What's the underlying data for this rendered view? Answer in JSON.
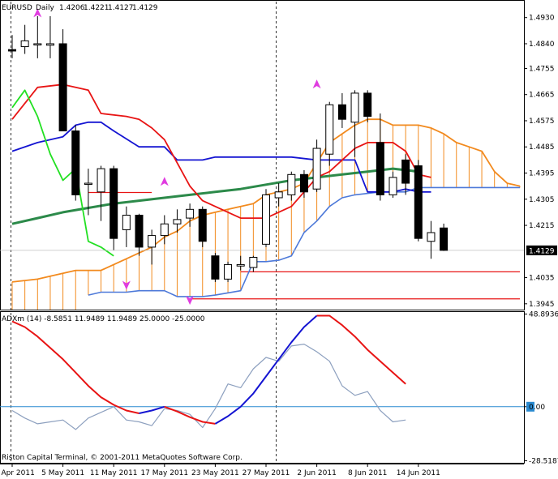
{
  "window": {
    "symbol": "EURUSD",
    "timeframe": "Daily",
    "ohlc": [
      "1.4206",
      "1.4221",
      "1.4127",
      "1.4129"
    ],
    "copyright": "Riston Capital Terminal, © 2001-2011 MetaQuotes Software Corp."
  },
  "colors": {
    "bull_candle": "#ffffff",
    "bear_candle": "#000000",
    "tenkan": "#e81414",
    "kijun": "#1414d2",
    "chikou": "#22e022",
    "cloud": "#f28a1e",
    "senkou_b": "#4d79d9",
    "ma": "#2c8a4a",
    "level_line": "#e81414",
    "arrow": "#e03ce0",
    "adx_up": "#1414d2",
    "adx_down": "#e81414",
    "di_line": "#8da0bf",
    "zero_line": "#2a8ad0",
    "grid": "#000000"
  },
  "chart_data": [
    {
      "type": "candlestick",
      "name": "price",
      "current_price": "1.4129",
      "y_ticks": [
        "1.4930",
        "1.4840",
        "1.4755",
        "1.4665",
        "1.4575",
        "1.4485",
        "1.4395",
        "1.4305",
        "1.4215",
        "1.4035",
        "1.3945"
      ],
      "y_tick_values": [
        1.493,
        1.484,
        1.4755,
        1.4665,
        1.4575,
        1.4485,
        1.4395,
        1.4305,
        1.4215,
        1.4035,
        1.3945
      ],
      "ylim": [
        1.3925,
        1.4985
      ],
      "x_labels": [
        "29 Apr 2011",
        "5 May 2011",
        "11 May 2011",
        "17 May 2011",
        "23 May 2011",
        "27 May 2011",
        "2 Jun 2011",
        "8 Jun 2011",
        "14 Jun 2011"
      ],
      "x_label_index": [
        0,
        4,
        8,
        12,
        16,
        20,
        24,
        28,
        32
      ],
      "candles": [
        {
          "o": 1.482,
          "h": 1.487,
          "l": 1.479,
          "c": 1.4815
        },
        {
          "o": 1.483,
          "h": 1.4905,
          "l": 1.4805,
          "c": 1.485
        },
        {
          "o": 1.484,
          "h": 1.4935,
          "l": 1.479,
          "c": 1.484
        },
        {
          "o": 1.4835,
          "h": 1.4935,
          "l": 1.479,
          "c": 1.484
        },
        {
          "o": 1.484,
          "h": 1.489,
          "l": 1.454,
          "c": 1.454
        },
        {
          "o": 1.454,
          "h": 1.456,
          "l": 1.43,
          "c": 1.432
        },
        {
          "o": 1.436,
          "h": 1.441,
          "l": 1.425,
          "c": 1.436
        },
        {
          "o": 1.433,
          "h": 1.442,
          "l": 1.423,
          "c": 1.441
        },
        {
          "o": 1.441,
          "h": 1.442,
          "l": 1.413,
          "c": 1.417
        },
        {
          "o": 1.42,
          "h": 1.428,
          "l": 1.414,
          "c": 1.425
        },
        {
          "o": 1.425,
          "h": 1.4255,
          "l": 1.411,
          "c": 1.414
        },
        {
          "o": 1.414,
          "h": 1.42,
          "l": 1.408,
          "c": 1.418
        },
        {
          "o": 1.418,
          "h": 1.425,
          "l": 1.415,
          "c": 1.422
        },
        {
          "o": 1.422,
          "h": 1.427,
          "l": 1.419,
          "c": 1.4235
        },
        {
          "o": 1.424,
          "h": 1.429,
          "l": 1.421,
          "c": 1.427
        },
        {
          "o": 1.427,
          "h": 1.428,
          "l": 1.414,
          "c": 1.416
        },
        {
          "o": 1.411,
          "h": 1.412,
          "l": 1.402,
          "c": 1.403
        },
        {
          "o": 1.403,
          "h": 1.409,
          "l": 1.402,
          "c": 1.408
        },
        {
          "o": 1.4075,
          "h": 1.411,
          "l": 1.406,
          "c": 1.408
        },
        {
          "o": 1.407,
          "h": 1.411,
          "l": 1.4055,
          "c": 1.4105
        },
        {
          "o": 1.415,
          "h": 1.434,
          "l": 1.414,
          "c": 1.432
        },
        {
          "o": 1.431,
          "h": 1.436,
          "l": 1.428,
          "c": 1.433
        },
        {
          "o": 1.432,
          "h": 1.44,
          "l": 1.43,
          "c": 1.439
        },
        {
          "o": 1.439,
          "h": 1.4405,
          "l": 1.431,
          "c": 1.433
        },
        {
          "o": 1.434,
          "h": 1.451,
          "l": 1.433,
          "c": 1.448
        },
        {
          "o": 1.446,
          "h": 1.464,
          "l": 1.442,
          "c": 1.463
        },
        {
          "o": 1.463,
          "h": 1.467,
          "l": 1.455,
          "c": 1.458
        },
        {
          "o": 1.457,
          "h": 1.468,
          "l": 1.445,
          "c": 1.467
        },
        {
          "o": 1.467,
          "h": 1.468,
          "l": 1.457,
          "c": 1.459
        },
        {
          "o": 1.45,
          "h": 1.46,
          "l": 1.43,
          "c": 1.432
        },
        {
          "o": 1.432,
          "h": 1.44,
          "l": 1.431,
          "c": 1.438
        },
        {
          "o": 1.444,
          "h": 1.446,
          "l": 1.432,
          "c": 1.436
        },
        {
          "o": 1.442,
          "h": 1.444,
          "l": 1.416,
          "c": 1.417
        },
        {
          "o": 1.416,
          "h": 1.423,
          "l": 1.41,
          "c": 1.419
        },
        {
          "o": 1.4206,
          "h": 1.4221,
          "l": 1.4127,
          "c": 1.4129
        }
      ],
      "tenkan": [
        [
          0,
          1.458
        ],
        [
          2,
          1.469
        ],
        [
          4,
          1.47
        ],
        [
          6,
          1.468
        ],
        [
          7,
          1.46
        ],
        [
          9,
          1.459
        ],
        [
          10,
          1.458
        ],
        [
          11,
          1.455
        ],
        [
          12,
          1.451
        ],
        [
          14,
          1.435
        ],
        [
          15,
          1.43
        ],
        [
          17,
          1.426
        ],
        [
          18,
          1.424
        ],
        [
          20,
          1.424
        ],
        [
          22,
          1.428
        ],
        [
          24,
          1.438
        ],
        [
          25,
          1.44
        ],
        [
          26,
          1.444
        ],
        [
          27,
          1.448
        ],
        [
          28,
          1.45
        ],
        [
          30,
          1.45
        ],
        [
          31,
          1.447
        ],
        [
          32,
          1.439
        ],
        [
          33,
          1.438
        ]
      ],
      "kijun": [
        [
          0,
          1.447
        ],
        [
          2,
          1.45
        ],
        [
          4,
          1.452
        ],
        [
          5,
          1.456
        ],
        [
          6,
          1.457
        ],
        [
          7,
          1.457
        ],
        [
          8,
          1.454
        ],
        [
          10,
          1.4485
        ],
        [
          12,
          1.4485
        ],
        [
          13,
          1.444
        ],
        [
          15,
          1.444
        ],
        [
          16,
          1.445
        ],
        [
          17,
          1.445
        ],
        [
          22,
          1.445
        ],
        [
          24,
          1.444
        ],
        [
          25,
          1.444
        ],
        [
          27,
          1.444
        ],
        [
          28,
          1.433
        ],
        [
          30,
          1.433
        ],
        [
          31,
          1.434
        ],
        [
          32,
          1.433
        ],
        [
          33,
          1.433
        ]
      ],
      "chikou": [
        [
          0,
          1.462
        ],
        [
          1,
          1.468
        ],
        [
          2,
          1.459
        ],
        [
          3,
          1.446
        ],
        [
          4,
          1.437
        ],
        [
          5,
          1.441
        ],
        [
          6,
          1.416
        ],
        [
          7,
          1.414
        ],
        [
          8,
          1.411
        ]
      ],
      "senkou_a": [
        [
          0,
          1.402
        ],
        [
          2,
          1.403
        ],
        [
          3,
          1.404
        ],
        [
          5,
          1.406
        ],
        [
          7,
          1.406
        ],
        [
          9,
          1.41
        ],
        [
          10,
          1.412
        ],
        [
          11,
          1.414
        ],
        [
          12,
          1.4175
        ],
        [
          13,
          1.4195
        ],
        [
          14,
          1.423
        ],
        [
          15,
          1.425
        ],
        [
          16,
          1.426
        ],
        [
          17,
          1.427
        ],
        [
          18,
          1.428
        ],
        [
          19,
          1.429
        ],
        [
          20,
          1.432
        ],
        [
          22,
          1.434
        ],
        [
          23,
          1.436
        ],
        [
          24,
          1.443
        ],
        [
          25,
          1.45
        ],
        [
          26,
          1.453
        ],
        [
          27,
          1.456
        ],
        [
          28,
          1.458
        ],
        [
          29,
          1.458
        ],
        [
          30,
          1.456
        ],
        [
          31,
          1.456
        ],
        [
          32,
          1.456
        ],
        [
          33,
          1.455
        ],
        [
          34,
          1.453
        ],
        [
          35,
          1.45
        ],
        [
          36,
          1.4485
        ],
        [
          37,
          1.447
        ],
        [
          38,
          1.44
        ],
        [
          39,
          1.436
        ],
        [
          40,
          1.435
        ]
      ],
      "senkou_b": [
        [
          6,
          1.3975
        ],
        [
          7,
          1.3985
        ],
        [
          9,
          1.3985
        ],
        [
          10,
          1.399
        ],
        [
          12,
          1.399
        ],
        [
          13,
          1.397
        ],
        [
          15,
          1.397
        ],
        [
          16,
          1.3975
        ],
        [
          18,
          1.399
        ],
        [
          19,
          1.409
        ],
        [
          20,
          1.409
        ],
        [
          21,
          1.4095
        ],
        [
          22,
          1.411
        ],
        [
          23,
          1.419
        ],
        [
          24,
          1.423
        ],
        [
          25,
          1.428
        ],
        [
          26,
          1.431
        ],
        [
          27,
          1.432
        ],
        [
          29,
          1.433
        ],
        [
          31,
          1.433
        ],
        [
          32,
          1.4345
        ],
        [
          40,
          1.4345
        ]
      ],
      "ma": [
        [
          0,
          1.422
        ],
        [
          2,
          1.424
        ],
        [
          4,
          1.426
        ],
        [
          6,
          1.4275
        ],
        [
          8,
          1.429
        ],
        [
          10,
          1.43
        ],
        [
          12,
          1.431
        ],
        [
          14,
          1.432
        ],
        [
          16,
          1.433
        ],
        [
          18,
          1.434
        ],
        [
          20,
          1.4355
        ],
        [
          22,
          1.437
        ],
        [
          24,
          1.438
        ],
        [
          26,
          1.439
        ],
        [
          28,
          1.44
        ],
        [
          30,
          1.441
        ],
        [
          32,
          1.44
        ]
      ],
      "levels": [
        {
          "value": 1.4328,
          "from": 6,
          "to": 11
        },
        {
          "value": 1.4055,
          "from": 18,
          "to": 40
        },
        {
          "value": 1.3962,
          "from": 14,
          "to": 40
        }
      ],
      "arrows_up": [
        [
          2,
          1.4945
        ],
        [
          12,
          1.4365
        ],
        [
          24,
          1.47
        ]
      ],
      "arrows_down": [
        [
          9,
          1.401
        ],
        [
          14,
          1.3958
        ]
      ],
      "vlines_index": [
        -0.1,
        20.8
      ]
    },
    {
      "type": "line",
      "name": "ADXm",
      "title": "ADXm (14) -8.5851 11.9489 11.9489 25.0000 -25.0000",
      "y_ticks": [
        "48.8936",
        "0.00",
        "-28.5187"
      ],
      "y_tick_values": [
        48.8936,
        0,
        -28.5187
      ],
      "ylim": [
        -30.0,
        49.5
      ],
      "adx_down_1": [
        [
          0,
          45
        ],
        [
          1,
          42
        ],
        [
          2,
          37
        ],
        [
          3,
          31
        ],
        [
          4,
          25
        ],
        [
          5,
          18
        ],
        [
          6,
          11
        ],
        [
          7,
          5
        ],
        [
          8,
          1
        ],
        [
          9,
          -2
        ],
        [
          10,
          -3.5
        ]
      ],
      "adx_up_1": [
        [
          10,
          -3.5
        ],
        [
          11,
          -2
        ],
        [
          12,
          0
        ]
      ],
      "adx_down_2": [
        [
          12,
          0
        ],
        [
          13,
          -2.5
        ],
        [
          14,
          -5.5
        ],
        [
          15,
          -8
        ],
        [
          16,
          -9
        ]
      ],
      "adx_up_2": [
        [
          16,
          -9
        ],
        [
          17,
          -5
        ],
        [
          18,
          0
        ],
        [
          19,
          7
        ],
        [
          20,
          16
        ],
        [
          21,
          25
        ],
        [
          22,
          34
        ],
        [
          23,
          42
        ],
        [
          24,
          48
        ]
      ],
      "adx_down_3": [
        [
          24,
          48
        ],
        [
          25,
          48
        ],
        [
          26,
          43
        ],
        [
          27,
          37
        ],
        [
          28,
          30
        ],
        [
          29,
          24
        ],
        [
          30,
          18
        ],
        [
          31,
          12
        ]
      ],
      "di": [
        [
          0,
          -2
        ],
        [
          1,
          -6
        ],
        [
          2,
          -9
        ],
        [
          3,
          -8
        ],
        [
          4,
          -7
        ],
        [
          5,
          -12
        ],
        [
          6,
          -6
        ],
        [
          7,
          -3
        ],
        [
          8,
          0
        ],
        [
          9,
          -7
        ],
        [
          10,
          -8
        ],
        [
          11,
          -10
        ],
        [
          12,
          -1
        ],
        [
          13,
          -2
        ],
        [
          14,
          -4
        ],
        [
          15,
          -11
        ],
        [
          16,
          -1
        ],
        [
          17,
          12
        ],
        [
          18,
          10
        ],
        [
          19,
          20
        ],
        [
          20,
          26
        ],
        [
          21,
          24
        ],
        [
          22,
          32
        ],
        [
          23,
          33
        ],
        [
          24,
          29
        ],
        [
          25,
          24
        ],
        [
          26,
          11
        ],
        [
          27,
          6
        ],
        [
          28,
          8
        ],
        [
          29,
          -2
        ],
        [
          30,
          -8
        ],
        [
          31,
          -7
        ]
      ],
      "zero_line": 0,
      "vlines_index": [
        -0.1,
        20.8
      ]
    }
  ]
}
